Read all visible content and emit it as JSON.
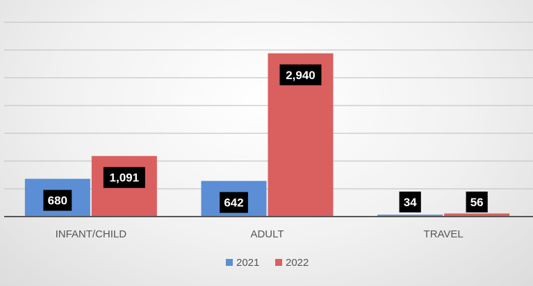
{
  "chart_data": {
    "type": "bar",
    "categories": [
      "INFANT/CHILD",
      "ADULT",
      "TRAVEL"
    ],
    "series": [
      {
        "name": "2021",
        "values": [
          680,
          642,
          34
        ],
        "labels": [
          "680",
          "642",
          "34"
        ],
        "color": "#5b8ed4"
      },
      {
        "name": "2022",
        "values": [
          1091,
          2940,
          56
        ],
        "labels": [
          "1,091",
          "2,940",
          "56"
        ],
        "color": "#d9605f"
      }
    ],
    "ylim": [
      0,
      3500
    ],
    "grid": true,
    "legend": "bottom",
    "data_label_style": {
      "background": "#000000",
      "color": "#ffffff"
    }
  }
}
